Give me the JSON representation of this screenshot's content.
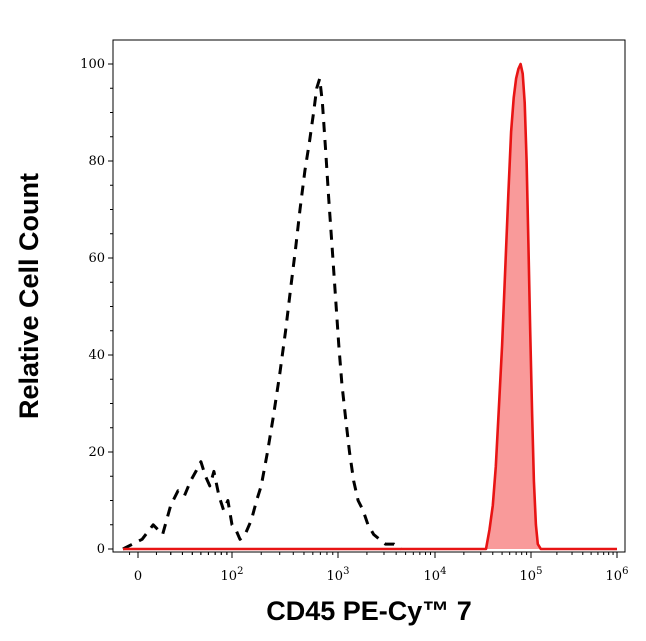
{
  "chart_data": {
    "type": "area",
    "xlabel": "CD45 PE-Cy™ 7",
    "ylabel": "Relative Cell Count",
    "x_scale": "biexponential",
    "ylim": [
      0,
      105
    ],
    "y_ticks": [
      0,
      20,
      40,
      60,
      80,
      100
    ],
    "x_ticks": [
      {
        "value": 0,
        "base": "0",
        "exp": ""
      },
      {
        "value": 100,
        "base": "10",
        "exp": "2"
      },
      {
        "value": 1000,
        "base": "10",
        "exp": "3"
      },
      {
        "value": 10000,
        "base": "10",
        "exp": "4"
      },
      {
        "value": 100000,
        "base": "10",
        "exp": "5"
      },
      {
        "value": 1000000,
        "base": "10",
        "exp": "6"
      }
    ],
    "grid": false,
    "legend": "none",
    "series": [
      {
        "style": "dashed",
        "color": "#000000",
        "fill": "none",
        "points": [
          [
            -20,
            0
          ],
          [
            2,
            2
          ],
          [
            8,
            5
          ],
          [
            14,
            3
          ],
          [
            20,
            9
          ],
          [
            26,
            12
          ],
          [
            32,
            11
          ],
          [
            38,
            14
          ],
          [
            44,
            16
          ],
          [
            50,
            18
          ],
          [
            56,
            15
          ],
          [
            62,
            13
          ],
          [
            68,
            16
          ],
          [
            76,
            11
          ],
          [
            84,
            8
          ],
          [
            92,
            10
          ],
          [
            100,
            5
          ],
          [
            110,
            4
          ],
          [
            122,
            2
          ],
          [
            138,
            3
          ],
          [
            160,
            6
          ],
          [
            180,
            10
          ],
          [
            200,
            13
          ],
          [
            230,
            20
          ],
          [
            260,
            27
          ],
          [
            300,
            36
          ],
          [
            340,
            45
          ],
          [
            380,
            54
          ],
          [
            420,
            62
          ],
          [
            460,
            70
          ],
          [
            510,
            78
          ],
          [
            560,
            84
          ],
          [
            610,
            90
          ],
          [
            650,
            95
          ],
          [
            690,
            97
          ],
          [
            730,
            92
          ],
          [
            780,
            82
          ],
          [
            830,
            72
          ],
          [
            890,
            62
          ],
          [
            950,
            52
          ],
          [
            1020,
            42
          ],
          [
            1100,
            34
          ],
          [
            1200,
            27
          ],
          [
            1320,
            20
          ],
          [
            1460,
            14
          ],
          [
            1620,
            10
          ],
          [
            1820,
            8
          ],
          [
            2050,
            5
          ],
          [
            2350,
            3
          ],
          [
            2700,
            2
          ],
          [
            3100,
            1
          ],
          [
            3800,
            1
          ],
          [
            4500,
            0
          ]
        ]
      },
      {
        "style": "solid",
        "color": "#e81414",
        "fill": "#f99a9a",
        "points": [
          [
            -20,
            0
          ],
          [
            34000,
            0
          ],
          [
            37000,
            4
          ],
          [
            40000,
            9
          ],
          [
            43000,
            17
          ],
          [
            46000,
            28
          ],
          [
            50000,
            42
          ],
          [
            54000,
            58
          ],
          [
            58000,
            73
          ],
          [
            62000,
            86
          ],
          [
            66000,
            93
          ],
          [
            70000,
            97
          ],
          [
            74000,
            99
          ],
          [
            78000,
            100
          ],
          [
            82000,
            98
          ],
          [
            86000,
            92
          ],
          [
            90000,
            80
          ],
          [
            94000,
            63
          ],
          [
            98000,
            45
          ],
          [
            103000,
            28
          ],
          [
            108000,
            14
          ],
          [
            114000,
            5
          ],
          [
            120000,
            1
          ],
          [
            130000,
            0
          ],
          [
            1000000,
            0
          ]
        ]
      }
    ]
  }
}
